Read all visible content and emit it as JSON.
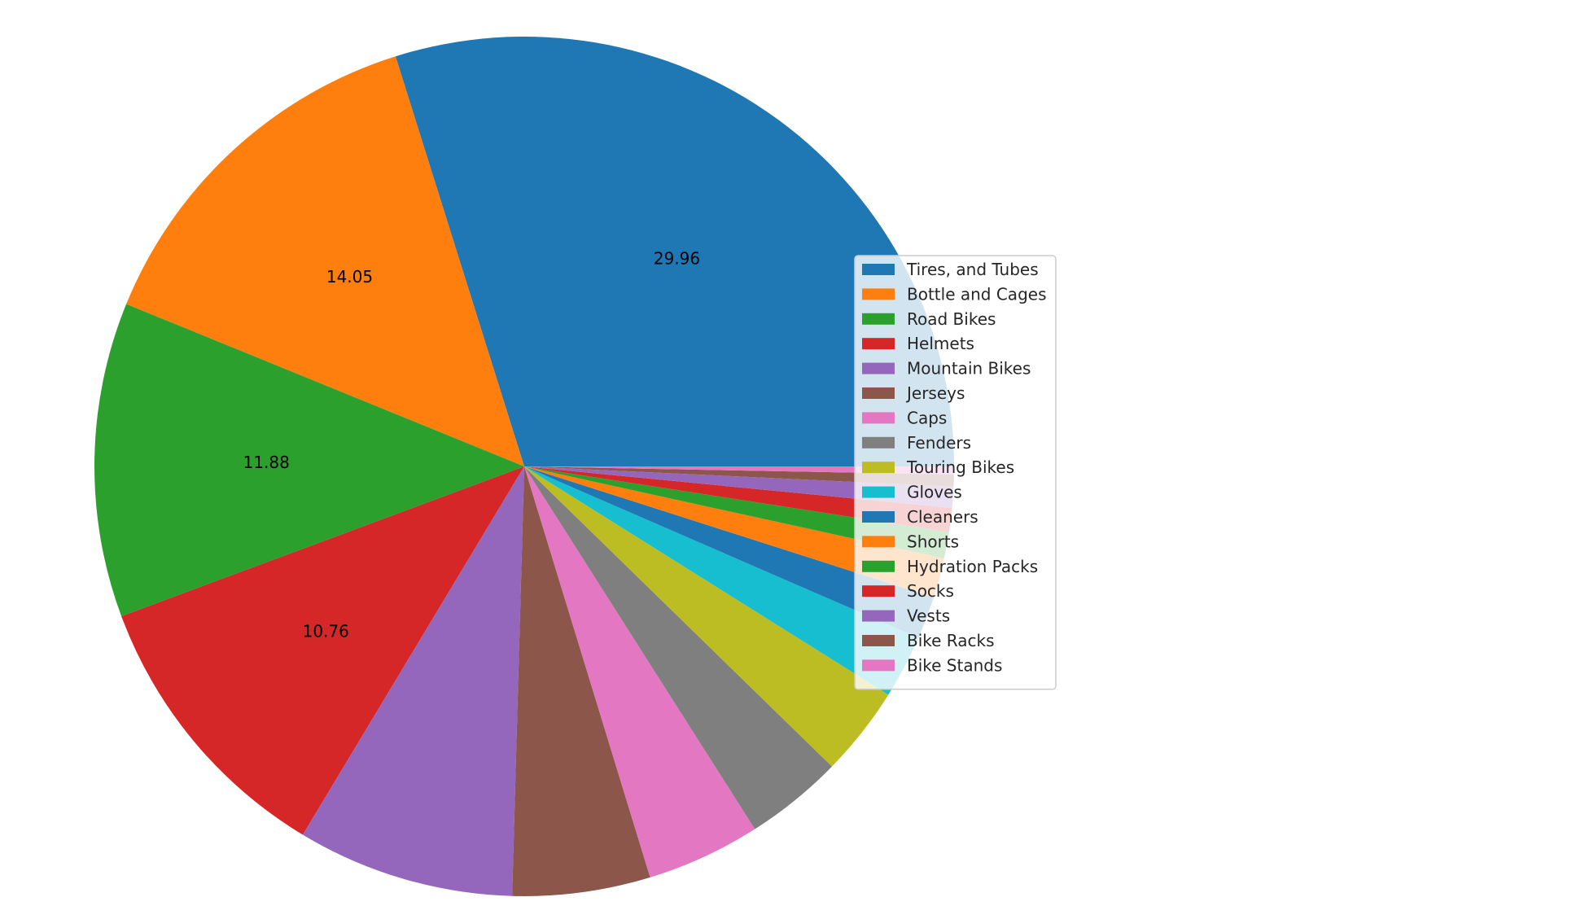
{
  "chart_data": {
    "type": "pie",
    "title": "",
    "start_angle_deg": 0,
    "direction": "counterclockwise",
    "legend_position": "center-right, overlapping pie",
    "slices": [
      {
        "label": "Tires, and Tubes",
        "value": 29.96,
        "color": "#1f77b4",
        "show_label": true
      },
      {
        "label": "Bottle and Cages",
        "value": 14.05,
        "color": "#ff7f0e",
        "show_label": true
      },
      {
        "label": "Road Bikes",
        "value": 11.88,
        "color": "#2ca02c",
        "show_label": true
      },
      {
        "label": "Helmets",
        "value": 10.76,
        "color": "#d62728",
        "show_label": true
      },
      {
        "label": "Mountain Bikes",
        "value": 8.2,
        "color": "#9467bd",
        "show_label": false
      },
      {
        "label": "Jerseys",
        "value": 5.2,
        "color": "#8c564b",
        "show_label": false
      },
      {
        "label": "Caps",
        "value": 4.3,
        "color": "#e377c2",
        "show_label": false
      },
      {
        "label": "Fenders",
        "value": 3.7,
        "color": "#7f7f7f",
        "show_label": false
      },
      {
        "label": "Touring Bikes",
        "value": 3.4,
        "color": "#bcbd22",
        "show_label": false
      },
      {
        "label": "Gloves",
        "value": 2.4,
        "color": "#17becf",
        "show_label": false
      },
      {
        "label": "Cleaners",
        "value": 1.6,
        "color": "#1f77b4",
        "show_label": false
      },
      {
        "label": "Shorts",
        "value": 1.5,
        "color": "#ff7f0e",
        "show_label": false
      },
      {
        "label": "Hydration Packs",
        "value": 1.0,
        "color": "#2ca02c",
        "show_label": false
      },
      {
        "label": "Socks",
        "value": 0.9,
        "color": "#d62728",
        "show_label": false
      },
      {
        "label": "Vests",
        "value": 0.8,
        "color": "#9467bd",
        "show_label": false
      },
      {
        "label": "Bike Racks",
        "value": 0.45,
        "color": "#8c564b",
        "show_label": false
      },
      {
        "label": "Bike Stands",
        "value": 0.3,
        "color": "#e377c2",
        "show_label": false
      }
    ]
  }
}
